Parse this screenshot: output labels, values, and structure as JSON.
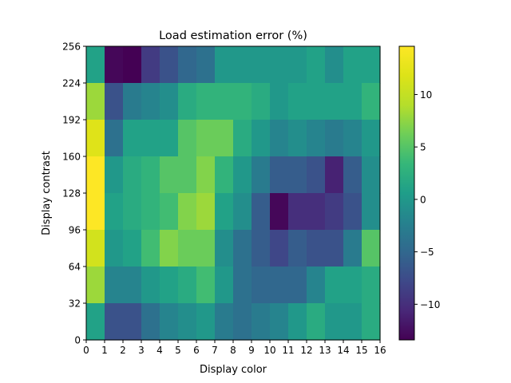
{
  "chart_data": {
    "type": "heatmap",
    "title": "Load estimation error (%)",
    "xlabel": "Display color",
    "ylabel": "Display contrast",
    "xlim": [
      0,
      16
    ],
    "ylim": [
      0,
      256
    ],
    "x_ticks": [
      "0",
      "1",
      "2",
      "3",
      "4",
      "5",
      "6",
      "7",
      "8",
      "9",
      "10",
      "11",
      "12",
      "13",
      "14",
      "15",
      "16"
    ],
    "y_ticks": [
      "0",
      "32",
      "64",
      "96",
      "128",
      "160",
      "192",
      "224",
      "256"
    ],
    "colorbar": {
      "colormap": "viridis",
      "range": [
        -13.4,
        14.6
      ],
      "tick_values": [
        -10,
        -5,
        0,
        5,
        10
      ],
      "tick_labels": [
        "−10",
        "−5",
        "0",
        "5",
        "10"
      ]
    },
    "rows_top_to_bottom_y_bins": [
      "224-256",
      "192-224",
      "160-192",
      "128-160",
      "96-128",
      "64-96",
      "32-64",
      "0-32"
    ],
    "values": [
      [
        1,
        -13,
        -13.4,
        -9,
        -7,
        -5,
        -4,
        0,
        0,
        0,
        0,
        0,
        1,
        -1,
        1,
        1
      ],
      [
        8,
        -7,
        -3,
        -2,
        -1,
        2,
        3,
        3,
        3,
        2,
        0,
        1,
        1,
        1,
        1,
        3
      ],
      [
        12,
        -4,
        1,
        1,
        1,
        5,
        6,
        6,
        2,
        0,
        -2,
        -1,
        -2,
        -3,
        -2,
        0
      ],
      [
        14.6,
        0,
        2,
        3,
        5,
        5,
        7,
        3,
        0,
        -3,
        -6,
        -6,
        -7,
        -11,
        -6,
        -1
      ],
      [
        14.6,
        1,
        2,
        3,
        4,
        7,
        8,
        1,
        -1,
        -6,
        -13,
        -10,
        -10,
        -9,
        -7,
        -1
      ],
      [
        11,
        0,
        1,
        4,
        7,
        6,
        6,
        -1,
        -4,
        -6,
        -8,
        -6,
        -7,
        -7,
        -3,
        5
      ],
      [
        8,
        -2,
        -2,
        0,
        1,
        2,
        4,
        0,
        -4,
        -5,
        -5,
        -5,
        -2,
        1,
        1,
        2
      ],
      [
        1,
        -7,
        -7,
        -4,
        -2,
        -1,
        0,
        -3,
        -4,
        -3,
        -2,
        0,
        2,
        0,
        0,
        2
      ]
    ]
  }
}
